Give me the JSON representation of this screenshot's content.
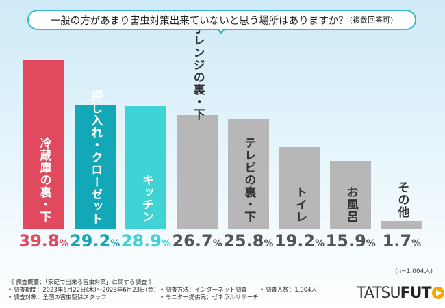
{
  "question": {
    "text": "一般の方があまり害虫対策出来ていないと思う場所はありますか？",
    "sub": "(複数回答可)"
  },
  "chart_data": {
    "type": "bar",
    "title": "一般の方があまり害虫対策出来ていないと思う場所はありますか？(複数回答可)",
    "categories": [
      "冷蔵庫の裏・下",
      "押し入れ・クローゼット",
      "キッチン",
      "電子レンジの裏・下",
      "テレビの裏・下",
      "トイレ",
      "お風呂",
      "その他"
    ],
    "values": [
      39.8,
      29.2,
      28.9,
      26.7,
      25.8,
      19.2,
      15.9,
      1.7
    ],
    "value_labels": [
      "39.8",
      "29.2",
      "28.9",
      "26.7",
      "25.8",
      "19.2",
      "15.9",
      "1.7"
    ],
    "unit": "%",
    "ylim": [
      0,
      40
    ],
    "grid": false,
    "legend": "none",
    "colors": {
      "bars": [
        "#e14a5e",
        "#13a8b8",
        "#40d3d5",
        "#b7b7b7",
        "#b7b7b7",
        "#b7b7b7",
        "#b7b7b7",
        "#b7b7b7"
      ],
      "percent_text": [
        "#e14a5e",
        "#13a8b8",
        "#40d3d5",
        "#555555",
        "#555555",
        "#555555",
        "#555555",
        "#555555"
      ],
      "category_text": [
        "#ffffff",
        "#ffffff",
        "#ffffff",
        "#333333",
        "#333333",
        "#333333",
        "#333333",
        "#333333"
      ]
    }
  },
  "sample_size": "(n=1,004人)",
  "notes": {
    "overview": "《 調査概要：「家庭で出来る害虫対策」に関する調査 》",
    "period": "• 調査期間：2023年6月22日(木)～2023年6月23日(金)",
    "target": "• 調査対象：全国の害虫駆除スタッフ",
    "method": "• 調査方法：インターネット調査",
    "provider": "• モニター提供元：ゼネラルリサーチ",
    "count": "• 調査人数：1,004人"
  },
  "logo": {
    "part1": "TATSU",
    "part2": "FUT"
  }
}
